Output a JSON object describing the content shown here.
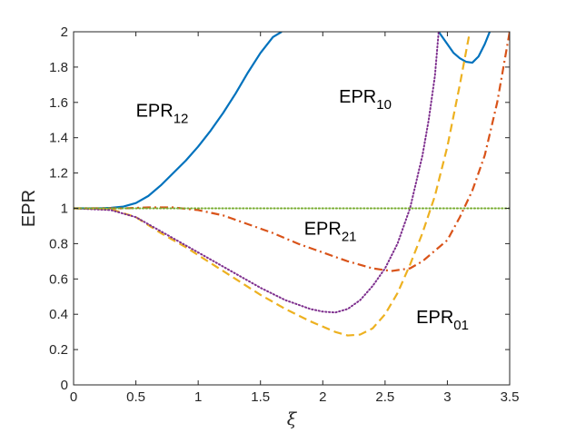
{
  "chart_data": {
    "type": "line",
    "title": "",
    "xlabel": "ξ",
    "ylabel": "EPR",
    "xlim": [
      0,
      3.5
    ],
    "ylim": [
      0,
      2
    ],
    "xticks": [
      "0",
      "0.5",
      "1",
      "1.5",
      "2",
      "2.5",
      "3",
      "3.5"
    ],
    "yticks": [
      "0",
      "0.2",
      "0.4",
      "0.6",
      "0.8",
      "1",
      "1.2",
      "1.4",
      "1.6",
      "1.8",
      "2"
    ],
    "grid": false,
    "legend": "none",
    "series": [
      {
        "color": "#0072BD",
        "style": "solid",
        "points": [
          [
            0,
            1
          ],
          [
            0.2,
            1.0
          ],
          [
            0.3,
            1.003
          ],
          [
            0.4,
            1.01
          ],
          [
            0.5,
            1.03
          ],
          [
            0.6,
            1.07
          ],
          [
            0.7,
            1.13
          ],
          [
            0.8,
            1.2
          ],
          [
            0.9,
            1.27
          ],
          [
            1.0,
            1.35
          ],
          [
            1.1,
            1.44
          ],
          [
            1.2,
            1.54
          ],
          [
            1.3,
            1.65
          ],
          [
            1.4,
            1.77
          ],
          [
            1.5,
            1.88
          ],
          [
            1.6,
            1.97
          ],
          [
            1.67,
            2.0
          ]
        ]
      },
      {
        "color": "#0072BD",
        "style": "solid",
        "points": [
          [
            2.93,
            2.0
          ],
          [
            3.0,
            1.93
          ],
          [
            3.05,
            1.88
          ],
          [
            3.1,
            1.85
          ],
          [
            3.15,
            1.83
          ],
          [
            3.2,
            1.825
          ],
          [
            3.25,
            1.86
          ],
          [
            3.3,
            1.93
          ],
          [
            3.34,
            2.0
          ]
        ]
      },
      {
        "color": "#D95319",
        "style": "dashdot",
        "points": [
          [
            0,
            1
          ],
          [
            0.4,
            1.0
          ],
          [
            0.6,
            1.005
          ],
          [
            0.8,
            1.005
          ],
          [
            1.0,
            0.99
          ],
          [
            1.2,
            0.96
          ],
          [
            1.4,
            0.91
          ],
          [
            1.6,
            0.86
          ],
          [
            1.8,
            0.8
          ],
          [
            2.0,
            0.75
          ],
          [
            2.2,
            0.7
          ],
          [
            2.4,
            0.66
          ],
          [
            2.55,
            0.645
          ],
          [
            2.7,
            0.66
          ],
          [
            2.8,
            0.7
          ],
          [
            2.9,
            0.76
          ],
          [
            3.0,
            0.82
          ],
          [
            3.1,
            0.95
          ],
          [
            3.2,
            1.1
          ],
          [
            3.3,
            1.3
          ],
          [
            3.4,
            1.6
          ],
          [
            3.5,
            2.0
          ]
        ]
      },
      {
        "color": "#EDB120",
        "style": "dashed",
        "points": [
          [
            0,
            1
          ],
          [
            0.3,
            0.995
          ],
          [
            0.5,
            0.95
          ],
          [
            0.7,
            0.86
          ],
          [
            0.9,
            0.78
          ],
          [
            1.1,
            0.69
          ],
          [
            1.3,
            0.6
          ],
          [
            1.5,
            0.51
          ],
          [
            1.7,
            0.43
          ],
          [
            1.9,
            0.36
          ],
          [
            2.1,
            0.3
          ],
          [
            2.2,
            0.28
          ],
          [
            2.3,
            0.285
          ],
          [
            2.4,
            0.32
          ],
          [
            2.5,
            0.4
          ],
          [
            2.6,
            0.52
          ],
          [
            2.7,
            0.68
          ],
          [
            2.8,
            0.86
          ],
          [
            2.9,
            1.07
          ],
          [
            3.0,
            1.35
          ],
          [
            3.1,
            1.7
          ],
          [
            3.18,
            2.0
          ]
        ]
      },
      {
        "color": "#7E2F8E",
        "style": "dotted",
        "points": [
          [
            0,
            1
          ],
          [
            0.3,
            0.99
          ],
          [
            0.5,
            0.95
          ],
          [
            0.7,
            0.87
          ],
          [
            0.9,
            0.79
          ],
          [
            1.1,
            0.71
          ],
          [
            1.3,
            0.63
          ],
          [
            1.5,
            0.55
          ],
          [
            1.7,
            0.48
          ],
          [
            1.9,
            0.43
          ],
          [
            2.0,
            0.415
          ],
          [
            2.1,
            0.41
          ],
          [
            2.2,
            0.43
          ],
          [
            2.3,
            0.48
          ],
          [
            2.4,
            0.56
          ],
          [
            2.5,
            0.66
          ],
          [
            2.6,
            0.8
          ],
          [
            2.7,
            1.0
          ],
          [
            2.8,
            1.3
          ],
          [
            2.85,
            1.5
          ],
          [
            2.9,
            1.75
          ],
          [
            2.93,
            2.0
          ]
        ]
      },
      {
        "color": "#77AC30",
        "style": "dotted",
        "points": [
          [
            0,
            1
          ],
          [
            3.5,
            1
          ]
        ]
      }
    ],
    "annotations": [
      {
        "base": "EPR",
        "sub": "12",
        "x": 0.5,
        "y": 1.52
      },
      {
        "base": "EPR",
        "sub": "10",
        "x": 2.13,
        "y": 1.6
      },
      {
        "base": "EPR",
        "sub": "21",
        "x": 1.85,
        "y": 0.85
      },
      {
        "base": "EPR",
        "sub": "01",
        "x": 2.75,
        "y": 0.35
      }
    ]
  }
}
